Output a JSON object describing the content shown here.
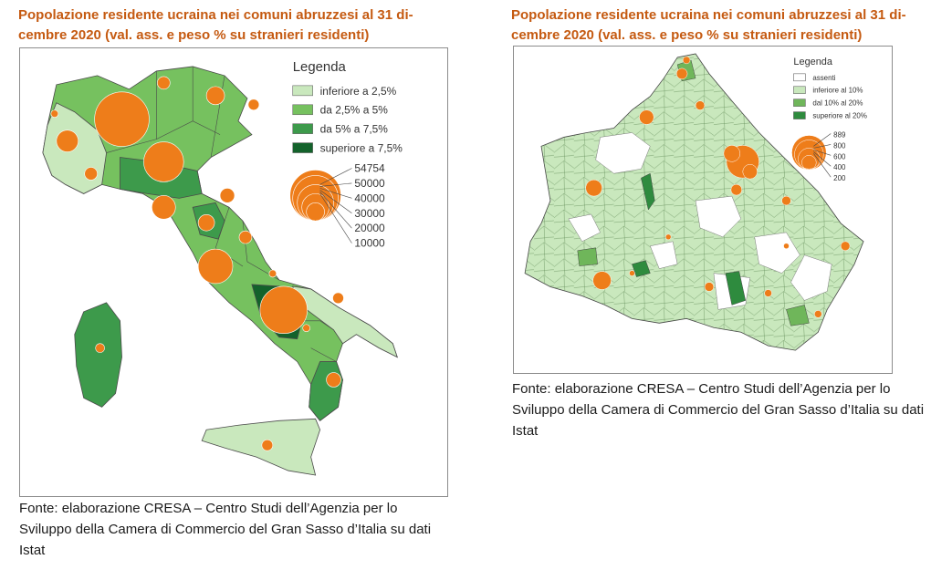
{
  "left_figure": {
    "title": "Popolazione residente ucraina nei comuni abruzzesi al 31 di-cembre 2020 (val. ass. e peso % su stranieri residenti)",
    "legend": {
      "title": "Legenda",
      "classes": [
        {
          "label": "inferiore a 2,5%",
          "color": "#c9e8bd"
        },
        {
          "label": "da 2,5% a 5%",
          "color": "#76c15f"
        },
        {
          "label": "da 5% a 7,5%",
          "color": "#3d9a4b"
        },
        {
          "label": "superiore a 7,5%",
          "color": "#13622b"
        }
      ],
      "circle_values": [
        "54754",
        "50000",
        "40000",
        "30000",
        "20000",
        "10000"
      ],
      "circle_color": "#ee7d1a"
    },
    "source": "Fonte: elaborazione CRESA – Centro Studi dell’Agenzia per lo Sviluppo della Camera di Commercio del Gran Sasso d’Italia su dati Istat"
  },
  "right_figure": {
    "title": "Popolazione residente ucraina nei comuni abruzzesi al 31 di-cembre 2020 (val. ass. e peso % su stranieri residenti)",
    "legend": {
      "title": "Legenda",
      "classes": [
        {
          "label": "assenti",
          "color": "#ffffff"
        },
        {
          "label": "inferiore al 10%",
          "color": "#c9e8bd"
        },
        {
          "label": "dal 10% al 20%",
          "color": "#6fb65a"
        },
        {
          "label": "superiore al 20%",
          "color": "#2e8b3e"
        }
      ],
      "circle_values": [
        "889",
        "800",
        "600",
        "400",
        "200"
      ],
      "circle_color": "#ee7d1a"
    },
    "source": "Fonte: elaborazione CRESA – Centro Studi dell’Agenzia per lo Sviluppo della Camera di Commercio del Gran Sasso d’Italia su dati Istat"
  }
}
